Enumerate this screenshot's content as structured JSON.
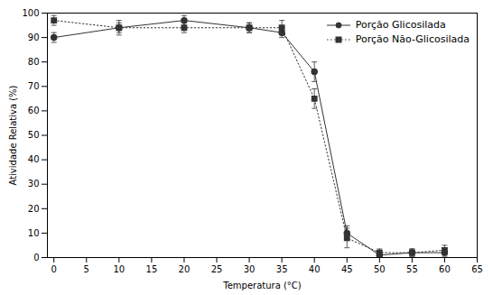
{
  "chart_data": {
    "type": "line",
    "xlabel": "Temperatura (°C)",
    "ylabel": "Atividade Relativa (%)",
    "x": [
      0,
      10,
      20,
      30,
      35,
      40,
      45,
      50,
      55,
      60
    ],
    "series": [
      {
        "name": "Porção Glicosilada",
        "color": "#333333",
        "marker": "circle",
        "line_style": "solid",
        "values": [
          90,
          94,
          97,
          94,
          92,
          76,
          10,
          1,
          2,
          2
        ],
        "yerr": [
          2,
          2,
          2,
          2,
          2,
          4,
          3,
          1.0,
          1.5,
          1.5
        ]
      },
      {
        "name": "Porção Não-Glicosilada",
        "color": "#333333",
        "marker": "square",
        "line_style": "dotted",
        "values": [
          97,
          94,
          94,
          94,
          94,
          65,
          8,
          2,
          2,
          3
        ],
        "yerr": [
          2,
          3,
          2,
          2,
          3,
          4,
          4,
          1.5,
          1.5,
          2
        ]
      }
    ],
    "xlim": [
      -1,
      65
    ],
    "xticks": [
      0,
      5,
      10,
      15,
      20,
      25,
      30,
      35,
      40,
      45,
      50,
      55,
      60,
      65
    ],
    "ylim": [
      0,
      100
    ],
    "yticks": [
      0,
      10,
      20,
      30,
      40,
      50,
      60,
      70,
      80,
      90,
      100
    ],
    "legend": "upper right",
    "grid": false
  }
}
